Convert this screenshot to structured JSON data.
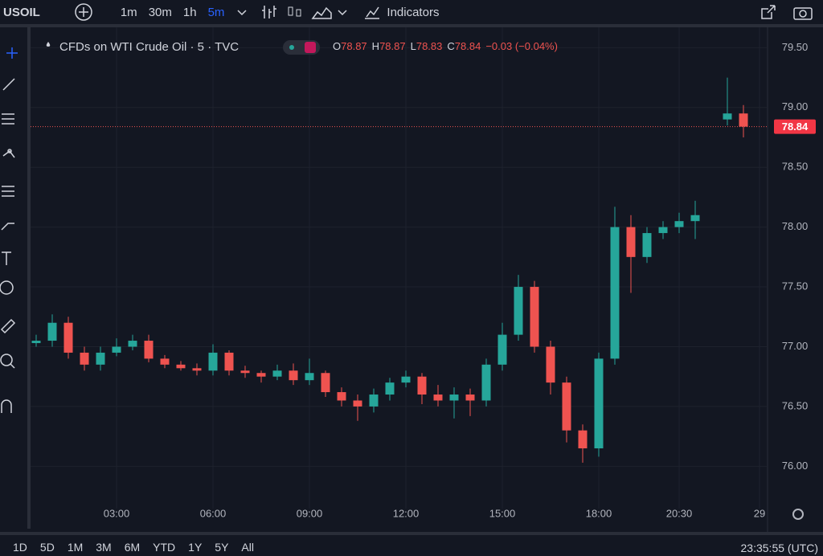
{
  "toolbar": {
    "symbol": "USOIL",
    "intervals": [
      "1m",
      "30m",
      "1h",
      "5m"
    ],
    "indicators": "Indicators"
  },
  "range_buttons": [
    "1D",
    "5D",
    "1M",
    "3M",
    "6M",
    "YTD",
    "1Y",
    "5Y",
    "All"
  ],
  "clock": "23:35:55 (UTC)",
  "chart_data": {
    "type": "candlestick",
    "title": "CFDs on WTI Crude Oil · 5 · TVC",
    "legend": {
      "open_label": "O",
      "open": "78.87",
      "high_label": "H",
      "high": "78.87",
      "low_label": "L",
      "low": "78.83",
      "close_label": "C",
      "close": "78.84",
      "change": "−0.03 (−0.04%)"
    },
    "up_color": "#26a69a",
    "down_color": "#ef5350",
    "grid": true,
    "x": [
      0.5,
      1,
      1.5,
      2,
      2.5,
      3,
      3.5,
      4,
      4.5,
      5,
      5.5,
      6,
      6.5,
      7,
      7.5,
      8,
      8.5,
      9,
      9.5,
      10,
      10.5,
      11,
      11.5,
      12,
      12.5,
      13,
      13.5,
      14,
      14.5,
      15,
      15.5,
      16,
      16.5,
      17,
      17.5,
      18,
      18.5,
      19,
      19.5,
      20,
      20.5,
      21,
      22,
      22.5
    ],
    "open": [
      77.03,
      77.05,
      77.2,
      76.95,
      76.85,
      76.95,
      77.0,
      77.05,
      76.9,
      76.85,
      76.82,
      76.8,
      76.95,
      76.8,
      76.78,
      76.75,
      76.8,
      76.72,
      76.78,
      76.62,
      76.55,
      76.5,
      76.6,
      76.7,
      76.75,
      76.6,
      76.55,
      76.6,
      76.55,
      76.85,
      77.1,
      77.5,
      77.0,
      76.7,
      76.3,
      76.15,
      76.9,
      78.0,
      77.75,
      77.95,
      78.0,
      78.05,
      78.9,
      78.95
    ],
    "high": [
      77.1,
      77.27,
      77.25,
      77.0,
      77.0,
      77.07,
      77.1,
      77.1,
      76.93,
      76.88,
      76.86,
      77.02,
      76.97,
      76.84,
      76.8,
      76.85,
      76.86,
      76.9,
      76.8,
      76.66,
      76.6,
      76.65,
      76.74,
      76.8,
      76.78,
      76.68,
      76.66,
      76.65,
      76.9,
      77.2,
      77.6,
      77.55,
      77.05,
      76.75,
      76.35,
      76.95,
      78.17,
      78.1,
      78.0,
      78.05,
      78.12,
      78.22,
      79.25,
      79.02
    ],
    "low": [
      77.0,
      77.0,
      76.9,
      76.8,
      76.8,
      76.92,
      76.97,
      76.87,
      76.82,
      76.8,
      76.76,
      76.76,
      76.76,
      76.74,
      76.7,
      76.72,
      76.68,
      76.68,
      76.58,
      76.5,
      76.38,
      76.45,
      76.55,
      76.66,
      76.52,
      76.5,
      76.4,
      76.42,
      76.5,
      76.8,
      77.05,
      76.95,
      76.6,
      76.2,
      76.03,
      76.08,
      76.85,
      77.45,
      77.7,
      77.9,
      77.95,
      77.9,
      78.85,
      78.75
    ],
    "close": [
      77.05,
      77.2,
      76.95,
      76.85,
      76.95,
      77.0,
      77.05,
      76.9,
      76.85,
      76.82,
      76.8,
      76.95,
      76.8,
      76.78,
      76.75,
      76.8,
      76.72,
      76.78,
      76.62,
      76.55,
      76.5,
      76.6,
      76.7,
      76.75,
      76.6,
      76.55,
      76.6,
      76.55,
      76.85,
      77.1,
      77.5,
      77.0,
      76.7,
      76.3,
      76.15,
      76.9,
      78.0,
      77.75,
      77.95,
      78.0,
      78.05,
      78.1,
      78.95,
      78.84
    ],
    "xlim": [
      0.325,
      23.25
    ],
    "xticks": [
      {
        "value": 3,
        "label": "03:00"
      },
      {
        "value": 6,
        "label": "06:00"
      },
      {
        "value": 9,
        "label": "09:00"
      },
      {
        "value": 12,
        "label": "12:00"
      },
      {
        "value": 15,
        "label": "15:00"
      },
      {
        "value": 18,
        "label": "18:00"
      },
      {
        "value": 20.5,
        "label": "20:30"
      },
      {
        "value": 23,
        "label": "29"
      }
    ],
    "ylim": [
      75.7,
      79.63
    ],
    "yticks": [
      {
        "value": 76,
        "label": "76.00"
      },
      {
        "value": 76.5,
        "label": "76.50"
      },
      {
        "value": 77,
        "label": "77.00"
      },
      {
        "value": 77.5,
        "label": "77.50"
      },
      {
        "value": 78,
        "label": "78.00"
      },
      {
        "value": 78.5,
        "label": "78.50"
      },
      {
        "value": 79,
        "label": "79.00"
      },
      {
        "value": 79.5,
        "label": "79.50"
      }
    ],
    "last_price": {
      "value": 78.84,
      "label": "78.84"
    }
  }
}
